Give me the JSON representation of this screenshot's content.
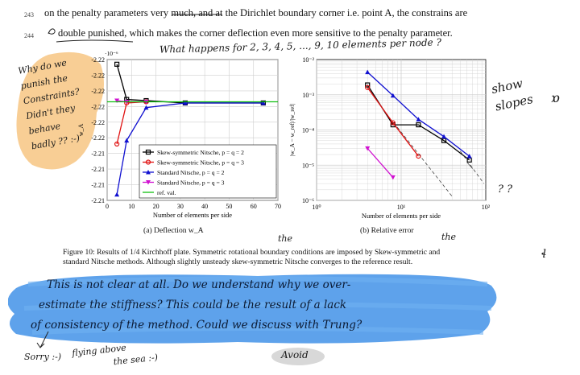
{
  "text": {
    "line243_no": "243",
    "line243": "on the penalty parameters very much, and at the Dirichlet boundary corner i.e. point A, the constrains are",
    "line244_no": "244",
    "line244": "double punished, which makes the corner deflection even more sensitive to the penalty parameter."
  },
  "chart_data": [
    {
      "type": "line",
      "title": "(a) Deflection w_A",
      "xlabel": "Number of elements per side",
      "ylabel": "w_A",
      "ylabel_exponent": "·10⁻⁶",
      "xlim": [
        0,
        70
      ],
      "ylim": [
        -2.21,
        -2.22
      ],
      "xticks": [
        "0",
        "10",
        "20",
        "30",
        "40",
        "50",
        "60",
        "70"
      ],
      "yticks": [
        "-2.22",
        "-2.22",
        "-2.22",
        "-2.22",
        "-2.22",
        "-2.22",
        "-2.21",
        "-2.21",
        "-2.21",
        "-2.21"
      ],
      "grid": true,
      "legend_position": "lower-right",
      "x": [
        4,
        8,
        16,
        32,
        64
      ],
      "series": [
        {
          "name": "Skew-symmetric Nitsche, p = q = 2",
          "color": "#000000",
          "marker": "square",
          "x": [
            4,
            8,
            16,
            32,
            64
          ],
          "y": [
            -2.2208,
            -2.2178,
            -2.2177,
            -2.2175,
            -2.2175
          ]
        },
        {
          "name": "Skew-symmetric Nitsche, p = q = 3",
          "color": "#e01010",
          "marker": "circle",
          "x": [
            4,
            8,
            16
          ],
          "y": [
            -2.214,
            -2.2175,
            -2.2176
          ]
        },
        {
          "name": "Standard Nitsche, p = q = 2",
          "color": "#1010d0",
          "marker": "triangle-up",
          "x": [
            4,
            8,
            16,
            32,
            64
          ],
          "y": [
            -2.2097,
            -2.2143,
            -2.2171,
            -2.2175,
            -2.2175
          ]
        },
        {
          "name": "Standard Nitsche, p = q = 3",
          "color": "#d010d0",
          "marker": "triangle-down",
          "x": [
            4,
            8,
            16
          ],
          "y": [
            -2.2177,
            -2.2176,
            -2.2176
          ]
        },
        {
          "name": "ref. val.",
          "color": "#10c010",
          "marker": "none",
          "x": [
            0,
            70
          ],
          "y": [
            -2.2176,
            -2.2176
          ]
        }
      ]
    },
    {
      "type": "line",
      "title": "(b) Relative error",
      "xlabel": "Number of elements per side",
      "ylabel": "|w_A − w_ref|/|w_ref|",
      "xscale": "log",
      "yscale": "log",
      "xlim": [
        1,
        100
      ],
      "ylim": [
        1e-06,
        0.01
      ],
      "xticks": [
        "10⁰",
        "10¹",
        "10²"
      ],
      "yticks": [
        "10⁻²",
        "10⁻³",
        "10⁻⁴",
        "10⁻⁵",
        "10⁻⁶"
      ],
      "grid": true,
      "series": [
        {
          "name": "Skew-symmetric Nitsche, p = q = 2",
          "color": "#000000",
          "marker": "square",
          "x": [
            4,
            8,
            16,
            32,
            64
          ],
          "y": [
            0.0019,
            0.00014,
            0.00014,
            5e-05,
            1.4e-05
          ]
        },
        {
          "name": "Skew-symmetric Nitsche, p = q = 3",
          "color": "#e01010",
          "marker": "circle",
          "x": [
            4,
            8,
            16
          ],
          "y": [
            0.0016,
            0.00016,
            1.8e-05
          ]
        },
        {
          "name": "Standard Nitsche, p = q = 2",
          "color": "#1010d0",
          "marker": "triangle-up",
          "x": [
            4,
            8,
            16,
            32,
            64
          ],
          "y": [
            0.0044,
            0.00095,
            0.0002,
            6.5e-05,
            1.8e-05
          ]
        },
        {
          "name": "Standard Nitsche, p = q = 3",
          "color": "#d010d0",
          "marker": "triangle-down",
          "x": [
            4,
            8
          ],
          "y": [
            3e-05,
            4.5e-06
          ]
        }
      ]
    }
  ],
  "figure": {
    "caption_line1": "Figure 10: Results of 1/4 Kirchhoff plate. Symmetric rotational boundary conditions are imposed by Skew-symmetric and",
    "caption_line2": "standard Nitsche methods. Although slightly unsteady skew-symmetric Nitsche converges to the reference result."
  },
  "annotations": {
    "top_question": "What happens for 2, 3, 4, 5, ..., 9, 10 elements per node ?",
    "left_note": [
      "Why do we",
      "punish the",
      "Constraints?",
      "Didn't they",
      "behave",
      "badly ?? :-)"
    ],
    "show_slopes": [
      "show",
      "slopes"
    ],
    "question_marks": "? ?",
    "the_1": "the",
    "the_2": "the",
    "blue_comment": [
      "This is not clear at all. Do we understand why we over-",
      "estimate the stiffness? This could be the result of a lack",
      "of consistency of the method. Could we discuss with Trung?"
    ],
    "sorry": "Sorry :-)",
    "flying": [
      "flying above",
      "the sea :-)"
    ],
    "avoid": "Avoid"
  },
  "colors": {
    "highlight_orange": "#f7c98a",
    "highlight_blue": "#3a8ee6",
    "grid": "#cfcfcf"
  }
}
